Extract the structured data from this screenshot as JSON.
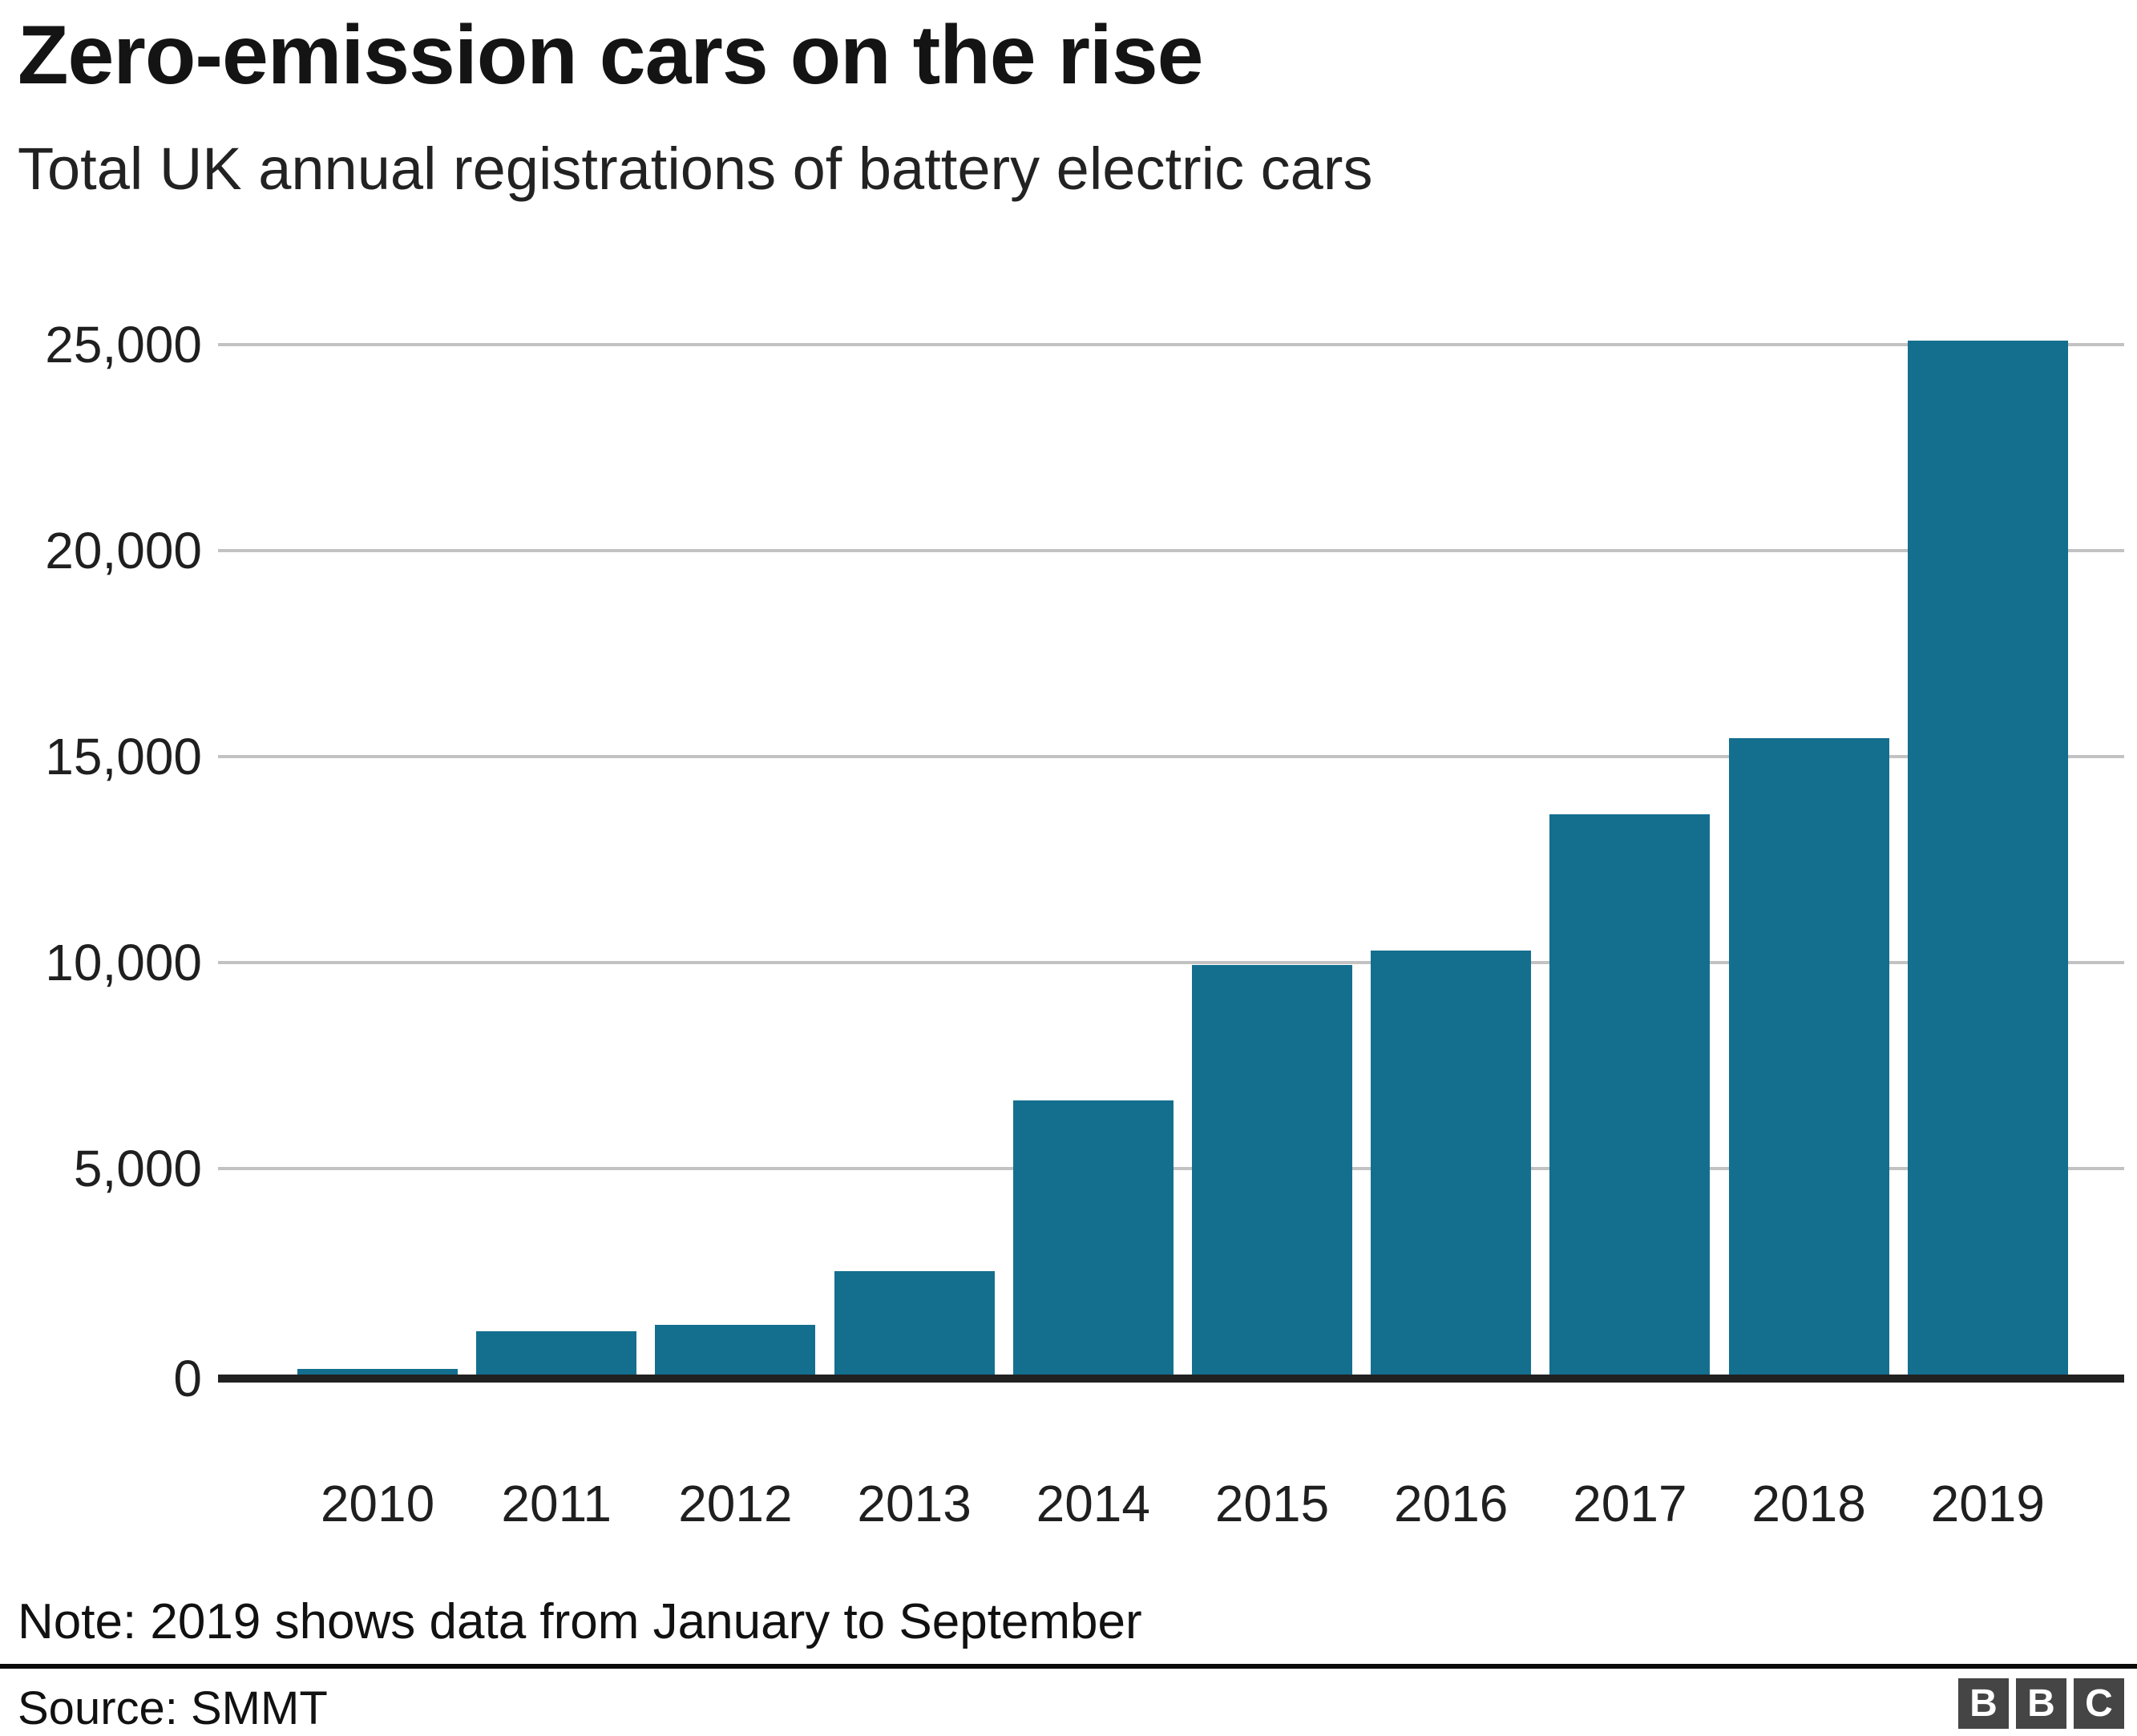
{
  "title": "Zero-emission cars on the rise",
  "subtitle": "Total UK annual registrations of battery electric cars",
  "note": "Note: 2019 shows data from January to September",
  "source": "Source: SMMT",
  "logo": {
    "letters": [
      "B",
      "B",
      "C"
    ]
  },
  "colors": {
    "bar": "#146f8f",
    "gridline": "#c2c2c2",
    "axis": "#212121",
    "rule": "#0a0a0a",
    "logo_bg": "#454545",
    "logo_letter": "#ffffff"
  },
  "chart_data": {
    "type": "bar",
    "title": "Zero-emission cars on the rise",
    "subtitle": "Total UK annual registrations of battery electric cars",
    "categories": [
      "2010",
      "2011",
      "2012",
      "2013",
      "2014",
      "2015",
      "2016",
      "2017",
      "2018",
      "2019"
    ],
    "values": [
      140,
      1050,
      1200,
      2500,
      6650,
      9950,
      10300,
      13600,
      15450,
      25100
    ],
    "xlabel": "",
    "ylabel": "",
    "ylim": [
      0,
      25000
    ],
    "yticks": [
      0,
      5000,
      10000,
      15000,
      20000,
      25000
    ],
    "ytick_labels": [
      "0",
      "5,000",
      "10,000",
      "15,000",
      "20,000",
      "25,000"
    ],
    "grid": "horizontal",
    "legend": "none"
  }
}
